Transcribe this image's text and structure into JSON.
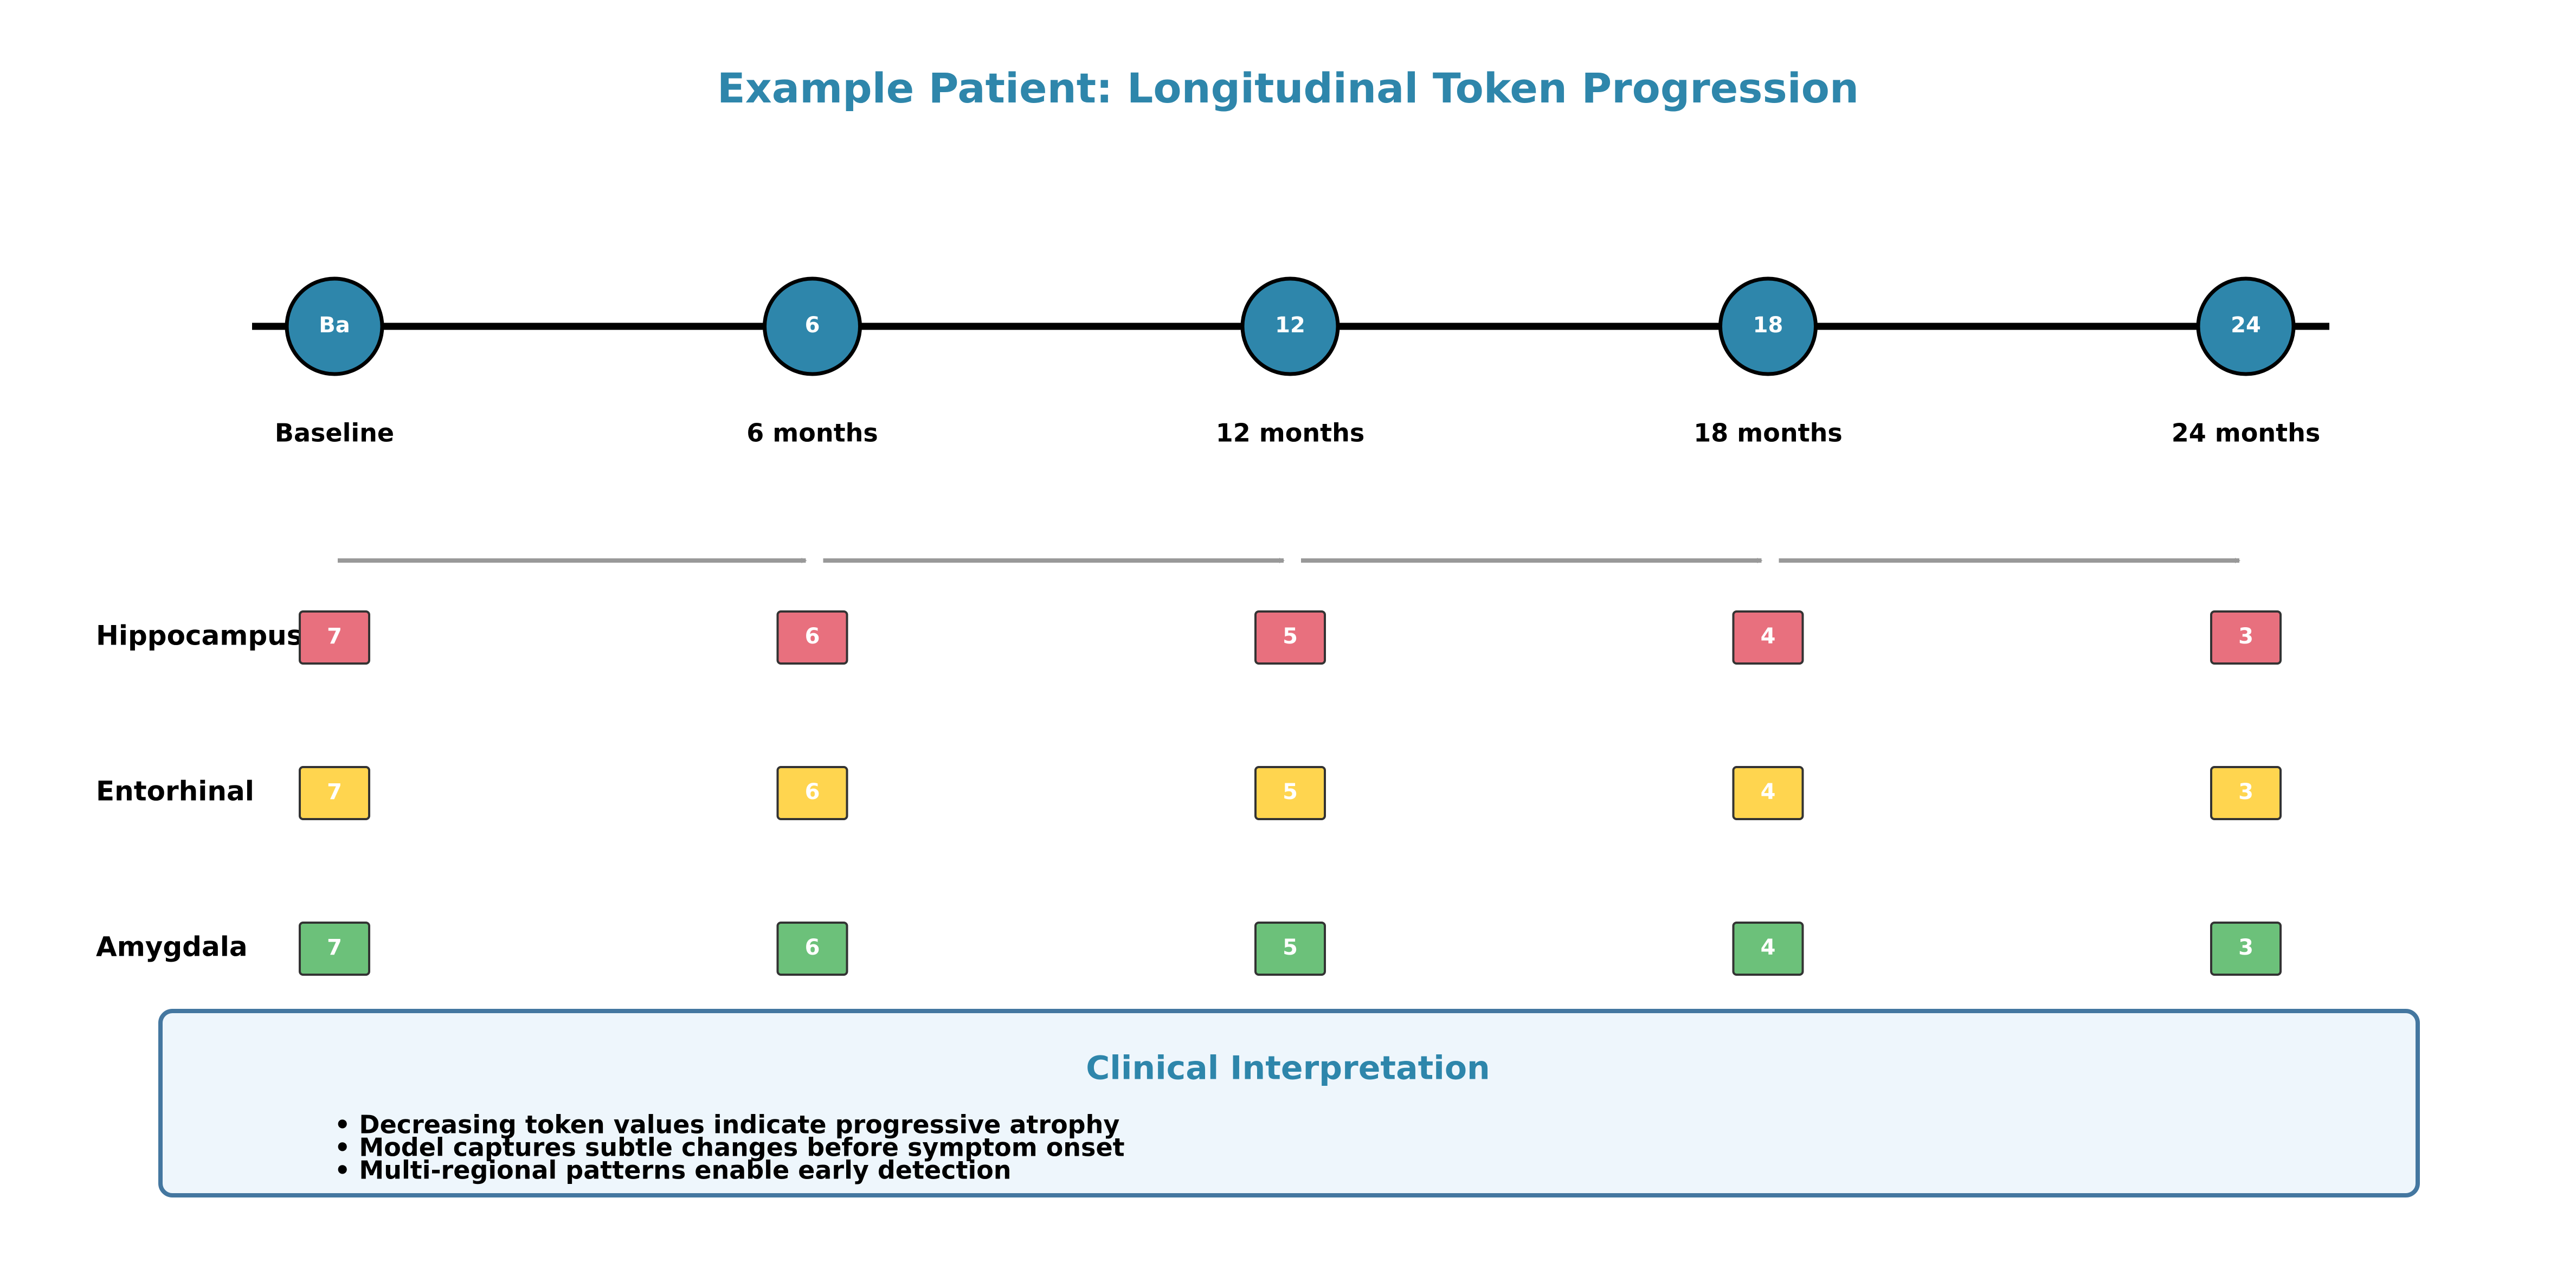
{
  "title": "Example Patient: Longitudinal Token Progression",
  "colors": {
    "title": "#2E86AB",
    "timepoint_fill": "#2E86AB",
    "timeline": "#000000",
    "arrow": "#999999",
    "box_fill": "#EEF6FC",
    "box_border": "#4477A0"
  },
  "timepoints": [
    {
      "marker": "Ba",
      "label": "Baseline"
    },
    {
      "marker": "6",
      "label": "6 months"
    },
    {
      "marker": "12",
      "label": "12 months"
    },
    {
      "marker": "18",
      "label": "18 months"
    },
    {
      "marker": "24",
      "label": "24 months"
    }
  ],
  "regions": [
    {
      "name": "Hippocampus",
      "color": "#E8707E",
      "tokens": [
        "7",
        "6",
        "5",
        "4",
        "3"
      ]
    },
    {
      "name": "Entorhinal",
      "color": "#FFD54F",
      "tokens": [
        "7",
        "6",
        "5",
        "4",
        "3"
      ]
    },
    {
      "name": "Amygdala",
      "color": "#6CC17A",
      "tokens": [
        "7",
        "6",
        "5",
        "4",
        "3"
      ]
    }
  ],
  "interpretation": {
    "title": "Clinical Interpretation",
    "bullets": [
      "• Decreasing token values indicate progressive atrophy",
      "• Model captures subtle changes before symptom onset",
      "• Multi-regional patterns enable early detection"
    ]
  }
}
